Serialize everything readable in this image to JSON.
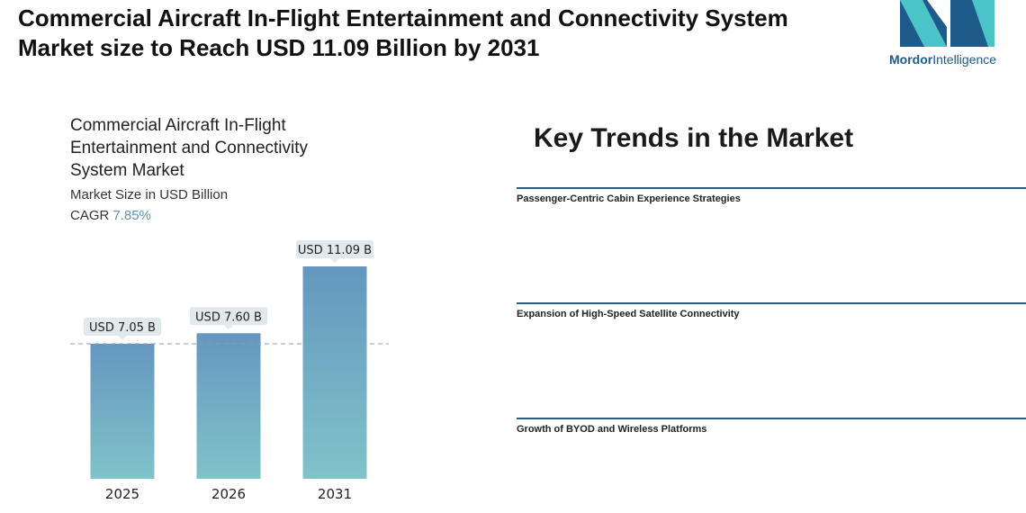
{
  "header": {
    "title": "Commercial Aircraft In-Flight Entertainment and Connectivity System Market size to Reach USD 11.09 Billion by 2031",
    "logo": {
      "brand": "Mordor",
      "suffix": "Intelligence"
    }
  },
  "chart_data": {
    "type": "bar",
    "title": "Commercial Aircraft In-Flight Entertainment and Connectivity System Market",
    "subtitle": "Market Size in USD Billion",
    "cagr": {
      "label": "CAGR",
      "value": "7.85%"
    },
    "categories": [
      "2025",
      "2026",
      "2031"
    ],
    "values": [
      7.05,
      7.6,
      11.09
    ],
    "value_labels": [
      "USD 7.05 B",
      "USD 7.60 B",
      "USD 11.09 B"
    ],
    "color": "#6a9cc0"
  },
  "key_trends": {
    "title": "Key Trends in the Market",
    "items": [
      "Passenger-Centric Cabin Experience Strategies",
      "Expansion of High-Speed Satellite Connectivity",
      "Growth of BYOD and Wireless Platforms"
    ]
  }
}
